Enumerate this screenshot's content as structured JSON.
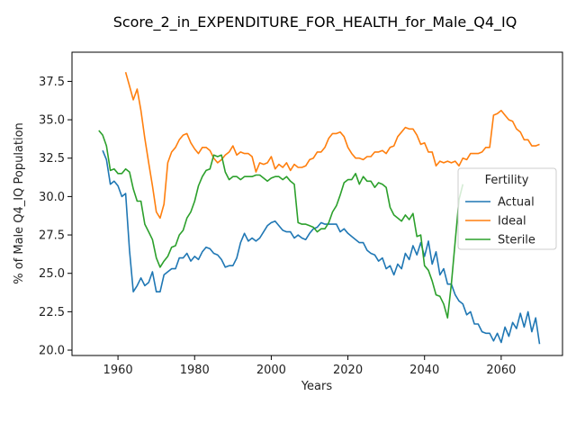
{
  "chart_data": {
    "type": "line",
    "title": "Score_2_in_EXPENDITURE_FOR_HEALTH_for_Male_Q4_IQ",
    "xlabel": "Years",
    "ylabel": "% of Male Q4_IQ Population",
    "xlim": [
      1948,
      2076
    ],
    "ylim": [
      19.65,
      39.4
    ],
    "xticks": [
      1960,
      1980,
      2000,
      2020,
      2040,
      2060
    ],
    "yticks": [
      20.0,
      22.5,
      25.0,
      27.5,
      30.0,
      32.5,
      35.0,
      37.5
    ],
    "ytick_labels": [
      "20.0",
      "22.5",
      "25.0",
      "27.5",
      "30.0",
      "32.5",
      "35.0",
      "37.5"
    ],
    "grid": false,
    "legend": {
      "title": "Fertility",
      "placement": "center-right"
    },
    "series": [
      {
        "name": "Actual",
        "color": "#1f77b4",
        "x": [
          1956,
          1957,
          1958,
          1959,
          1960,
          1961,
          1962,
          1963,
          1964,
          1965,
          1966,
          1967,
          1968,
          1969,
          1970,
          1971,
          1972,
          1973,
          1974,
          1975,
          1976,
          1977,
          1978,
          1979,
          1980,
          1981,
          1982,
          1983,
          1984,
          1985,
          1986,
          1987,
          1988,
          1989,
          1990,
          1991,
          1992,
          1993,
          1994,
          1995,
          1996,
          1997,
          1998,
          1999,
          2000,
          2001,
          2002,
          2003,
          2004,
          2005,
          2006,
          2007,
          2008,
          2009,
          2010,
          2011,
          2012,
          2013,
          2014,
          2015,
          2016,
          2017,
          2018,
          2019,
          2020,
          2021,
          2022,
          2023,
          2024,
          2025,
          2026,
          2027,
          2028,
          2029,
          2030,
          2031,
          2032,
          2033,
          2034,
          2035,
          2036,
          2037,
          2038,
          2039,
          2040,
          2041,
          2042,
          2043,
          2044,
          2045,
          2046,
          2047,
          2048,
          2049,
          2050,
          2051,
          2052,
          2053,
          2054,
          2055,
          2056,
          2057,
          2058,
          2059,
          2060,
          2061,
          2062,
          2063,
          2064,
          2065,
          2066,
          2067,
          2068,
          2069,
          2070
        ],
        "y": [
          33.0,
          32.4,
          30.8,
          31.0,
          30.7,
          30.0,
          30.2,
          26.5,
          23.8,
          24.2,
          24.7,
          24.2,
          24.4,
          25.1,
          23.8,
          23.8,
          24.9,
          25.1,
          25.3,
          25.3,
          26.0,
          26.0,
          26.3,
          25.8,
          26.1,
          25.9,
          26.4,
          26.7,
          26.6,
          26.3,
          26.2,
          25.9,
          25.4,
          25.5,
          25.5,
          26.0,
          27.0,
          27.6,
          27.1,
          27.3,
          27.1,
          27.3,
          27.7,
          28.1,
          28.3,
          28.4,
          28.1,
          27.8,
          27.7,
          27.7,
          27.3,
          27.5,
          27.3,
          27.2,
          27.6,
          27.9,
          28.0,
          28.3,
          28.2,
          28.2,
          28.2,
          28.2,
          27.7,
          27.9,
          27.6,
          27.4,
          27.2,
          27.0,
          27.0,
          26.5,
          26.3,
          26.2,
          25.8,
          26.0,
          25.3,
          25.5,
          24.9,
          25.6,
          25.3,
          26.3,
          25.9,
          26.8,
          26.2,
          27.0,
          26.1,
          27.1,
          25.6,
          26.4,
          24.9,
          25.3,
          24.3,
          24.3,
          23.6,
          23.2,
          23.0,
          22.3,
          22.5,
          21.7,
          21.7,
          21.2,
          21.1,
          21.1,
          20.6,
          21.1,
          20.5,
          21.5,
          20.9,
          21.8,
          21.4,
          22.4,
          21.5,
          22.5,
          21.2,
          22.1,
          20.4
        ]
      },
      {
        "name": "Ideal",
        "color": "#ff7f0e",
        "x": [
          1962,
          1963,
          1964,
          1965,
          1966,
          1967,
          1968,
          1969,
          1970,
          1971,
          1972,
          1973,
          1974,
          1975,
          1976,
          1977,
          1978,
          1979,
          1980,
          1981,
          1982,
          1983,
          1984,
          1985,
          1986,
          1987,
          1988,
          1989,
          1990,
          1991,
          1992,
          1993,
          1994,
          1995,
          1996,
          1997,
          1998,
          1999,
          2000,
          2001,
          2002,
          2003,
          2004,
          2005,
          2006,
          2007,
          2008,
          2009,
          2010,
          2011,
          2012,
          2013,
          2014,
          2015,
          2016,
          2017,
          2018,
          2019,
          2020,
          2021,
          2022,
          2023,
          2024,
          2025,
          2026,
          2027,
          2028,
          2029,
          2030,
          2031,
          2032,
          2033,
          2034,
          2035,
          2036,
          2037,
          2038,
          2039,
          2040,
          2041,
          2042,
          2043,
          2044,
          2045,
          2046,
          2047,
          2048,
          2049,
          2050,
          2051,
          2052,
          2053,
          2054,
          2055,
          2056,
          2057,
          2058,
          2059,
          2060,
          2061,
          2062,
          2063,
          2064,
          2065,
          2066,
          2067,
          2068,
          2069,
          2070
        ],
        "y": [
          38.1,
          37.2,
          36.3,
          37.0,
          35.6,
          33.8,
          32.2,
          30.7,
          29.0,
          28.6,
          29.5,
          32.2,
          32.9,
          33.2,
          33.7,
          34.0,
          34.1,
          33.5,
          33.1,
          32.8,
          33.2,
          33.2,
          33.0,
          32.5,
          32.2,
          32.4,
          32.7,
          32.9,
          33.3,
          32.7,
          32.9,
          32.8,
          32.8,
          32.6,
          31.6,
          32.2,
          32.1,
          32.2,
          32.6,
          31.8,
          32.1,
          31.9,
          32.2,
          31.7,
          32.1,
          31.9,
          31.9,
          32.0,
          32.4,
          32.5,
          32.9,
          32.9,
          33.2,
          33.8,
          34.1,
          34.1,
          34.2,
          33.9,
          33.2,
          32.8,
          32.5,
          32.5,
          32.4,
          32.6,
          32.6,
          32.9,
          32.9,
          33.0,
          32.8,
          33.2,
          33.3,
          33.9,
          34.2,
          34.5,
          34.4,
          34.4,
          34.0,
          33.4,
          33.5,
          32.9,
          32.9,
          32.0,
          32.3,
          32.2,
          32.3,
          32.2,
          32.3,
          32.0,
          32.5,
          32.4,
          32.8,
          32.8,
          32.8,
          32.9,
          33.2,
          33.2,
          35.3,
          35.4,
          35.6,
          35.3,
          35.0,
          34.9,
          34.4,
          34.2,
          33.7,
          33.7,
          33.3,
          33.3,
          33.4
        ]
      },
      {
        "name": "Sterile",
        "color": "#2ca02c",
        "x": [
          1955,
          1956,
          1957,
          1958,
          1959,
          1960,
          1961,
          1962,
          1963,
          1964,
          1965,
          1966,
          1967,
          1968,
          1969,
          1970,
          1971,
          1972,
          1973,
          1974,
          1975,
          1976,
          1977,
          1978,
          1979,
          1980,
          1981,
          1982,
          1983,
          1984,
          1985,
          1986,
          1987,
          1988,
          1989,
          1990,
          1991,
          1992,
          1993,
          1994,
          1995,
          1996,
          1997,
          1998,
          1999,
          2000,
          2001,
          2002,
          2003,
          2004,
          2005,
          2006,
          2007,
          2008,
          2009,
          2010,
          2011,
          2012,
          2013,
          2014,
          2015,
          2016,
          2017,
          2018,
          2019,
          2020,
          2021,
          2022,
          2023,
          2024,
          2025,
          2026,
          2027,
          2028,
          2029,
          2030,
          2031,
          2032,
          2033,
          2034,
          2035,
          2036,
          2037,
          2038,
          2039,
          2040,
          2041,
          2042,
          2043,
          2044,
          2045,
          2046,
          2047,
          2048,
          2049,
          2050
        ],
        "y": [
          34.3,
          34.0,
          33.3,
          31.7,
          31.8,
          31.5,
          31.5,
          31.8,
          31.6,
          30.5,
          29.7,
          29.7,
          28.2,
          27.7,
          27.2,
          26.0,
          25.4,
          25.8,
          26.1,
          26.7,
          26.8,
          27.5,
          27.8,
          28.6,
          29.0,
          29.7,
          30.7,
          31.3,
          31.7,
          31.8,
          32.7,
          32.6,
          32.7,
          31.6,
          31.1,
          31.3,
          31.3,
          31.1,
          31.3,
          31.3,
          31.3,
          31.4,
          31.4,
          31.2,
          31.0,
          31.2,
          31.3,
          31.3,
          31.1,
          31.3,
          31.0,
          30.8,
          28.3,
          28.2,
          28.2,
          28.1,
          28.0,
          27.7,
          27.9,
          27.9,
          28.3,
          29.0,
          29.4,
          30.1,
          30.9,
          31.1,
          31.1,
          31.5,
          30.8,
          31.3,
          31.0,
          31.0,
          30.6,
          30.9,
          30.8,
          30.6,
          29.3,
          28.8,
          28.6,
          28.4,
          28.8,
          28.5,
          28.9,
          27.4,
          27.5,
          25.5,
          25.2,
          24.5,
          23.6,
          23.5,
          23.0,
          22.1,
          24.3,
          27.1,
          29.8,
          30.8
        ]
      }
    ]
  }
}
